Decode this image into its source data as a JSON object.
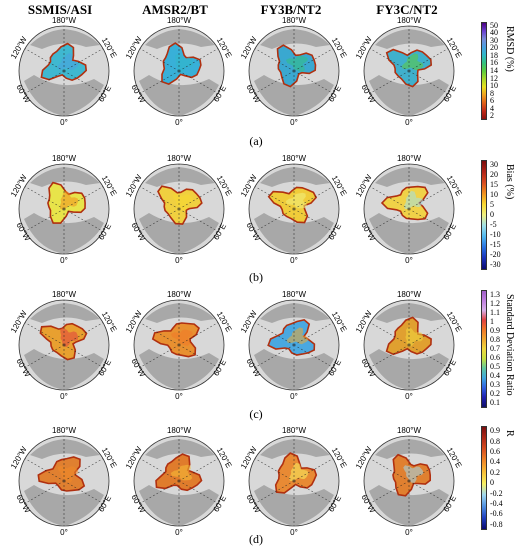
{
  "columns": [
    "SSMIS/ASI",
    "AMSR2/BT",
    "FY3B/NT2",
    "FY3C/NT2"
  ],
  "longitude_labels": {
    "top": "180°W",
    "upper_left": "120°W",
    "upper_right": "120°E",
    "lower_left": "60°W",
    "lower_right": "60°E",
    "bottom": "0°"
  },
  "rows": [
    {
      "label": "(a)",
      "colorbar_title": "RMSD (%)",
      "colorbar_ticks": [
        "50",
        "40",
        "30",
        "20",
        "18",
        "16",
        "14",
        "12",
        "10",
        "8",
        "6",
        "4",
        "2"
      ],
      "colorbar_colors": [
        "#4b0082",
        "#6a3fd0",
        "#7a8bd8",
        "#4aa0e0",
        "#2fb8c8",
        "#33c080",
        "#5ccc3c",
        "#a8d82a",
        "#e8e020",
        "#f0a020",
        "#e06018",
        "#c02818",
        "#8a1010"
      ],
      "fills": [
        "#3fb8d0",
        "#38b0d8",
        "#3aa8d0",
        "#40b0cc"
      ]
    },
    {
      "label": "(b)",
      "colorbar_title": "Bias (%)",
      "colorbar_ticks": [
        "30",
        "20",
        "15",
        "10",
        "5",
        "0",
        "-5",
        "-10",
        "-15",
        "-20",
        "-30"
      ],
      "colorbar_colors": [
        "#7a0c0c",
        "#b02418",
        "#d84a20",
        "#f0901e",
        "#f8d830",
        "#f0f080",
        "#a0e0e8",
        "#50b8f0",
        "#2870e0",
        "#1a30b8",
        "#0a0a70"
      ],
      "fills": [
        "#e8e44a",
        "#f0d040",
        "#f0cc3a",
        "#f0d248"
      ]
    },
    {
      "label": "(c)",
      "colorbar_title": "Standard Deviation Ratio",
      "colorbar_ticks": [
        "1.3",
        "1.2",
        "1.1",
        "1",
        "0.9",
        "0.8",
        "0.7",
        "0.6",
        "0.5",
        "0.4",
        "0.3",
        "0.2",
        "0.1"
      ],
      "colorbar_colors": [
        "#a060c8",
        "#c080e0",
        "#d8b0e8",
        "#e04040",
        "#f07828",
        "#f0a830",
        "#f0d840",
        "#c8e040",
        "#60c8a0",
        "#40a8e0",
        "#3060e0",
        "#2020b0",
        "#10106a"
      ],
      "fills": [
        "#e8a030",
        "#e89030",
        "#4aa8e0",
        "#e0a030"
      ]
    },
    {
      "label": "(d)",
      "colorbar_title": "R",
      "colorbar_ticks": [
        "0.9",
        "0.8",
        "0.6",
        "0.4",
        "0.2",
        "0",
        "-0.2",
        "-0.4",
        "-0.6",
        "-0.8"
      ],
      "colorbar_colors": [
        "#7a1010",
        "#b02a18",
        "#d85020",
        "#f08828",
        "#f8c038",
        "#f8f060",
        "#a0d8f0",
        "#5090e0",
        "#2040c0",
        "#0a0a70"
      ],
      "fills": [
        "#e08030",
        "#e07c2c",
        "#e88a34",
        "#e08030"
      ]
    }
  ]
}
